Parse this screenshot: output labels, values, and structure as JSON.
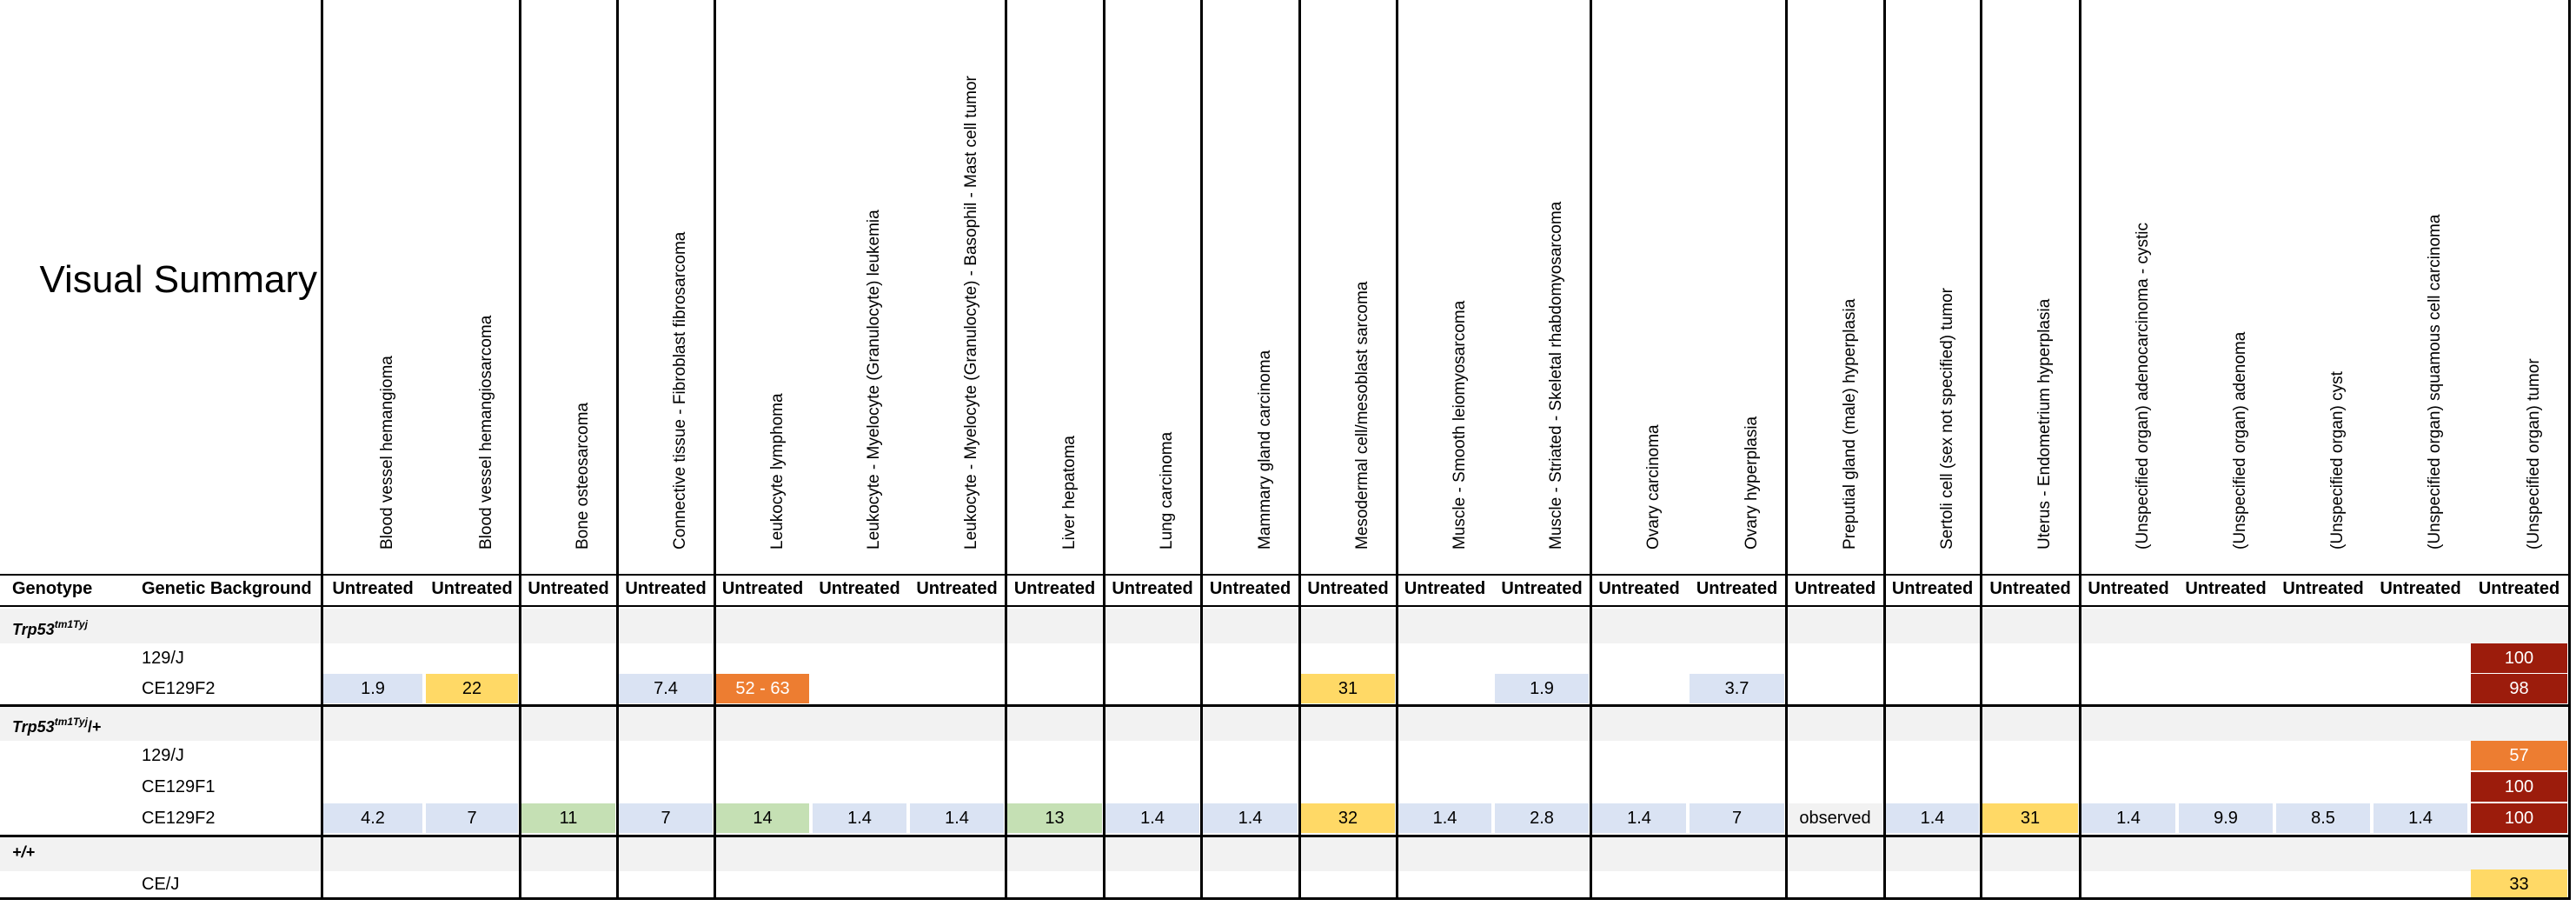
{
  "title": "Visual Summary",
  "header": {
    "genotype_label": "Genotype",
    "background_label": "Genetic Background",
    "treatment_label": "Untreated"
  },
  "columns": [
    "Blood vessel hemangioma",
    "Blood vessel hemangiosarcoma",
    "Bone osteosarcoma",
    "Connective tissue - Fibroblast fibrosarcoma",
    "Leukocyte lymphoma",
    "Leukocyte - Myelocyte (Granulocyte) leukemia",
    "Leukocyte - Myelocyte (Granulocyte) - Basophil - Mast cell tumor",
    "Liver hepatoma",
    "Lung carcinoma",
    "Mammary gland carcinoma",
    "Mesodermal cell/mesoblast sarcoma",
    "Muscle - Smooth leiomyosarcoma",
    "Muscle - Striated - Skeletal rhabdomyosarcoma",
    "Ovary carcinoma",
    "Ovary hyperplasia",
    "Preputial gland (male) hyperplasia",
    "Sertoli cell (sex not specified) tumor",
    "Uterus - Endometrium hyperplasia",
    "(Unspecified organ) adenocarcinoma - cystic",
    "(Unspecified organ) adenoma",
    "(Unspecified organ) cyst",
    "(Unspecified organ) squamous cell carcinoma",
    "(Unspecified organ) tumor"
  ],
  "colors": {
    "very_low": "#dae3f3",
    "low": "#c5e0b4",
    "mid": "#ffd966",
    "high": "#ed7d31",
    "very_high": "#9c1c0c",
    "neutral": "#f2f2f2",
    "group_band": "#f2f2f2"
  },
  "groups": [
    {
      "genotype": "Trp53",
      "allele": "tm1Tyj",
      "suffix": "",
      "rows": [
        {
          "background": "129/J",
          "cells": [
            {
              "col": 22,
              "value": "100",
              "level": "very_high"
            }
          ]
        },
        {
          "background": "CE129F2",
          "cells": [
            {
              "col": 0,
              "value": "1.9",
              "level": "very_low"
            },
            {
              "col": 1,
              "value": "22",
              "level": "mid"
            },
            {
              "col": 3,
              "value": "7.4",
              "level": "very_low"
            },
            {
              "col": 4,
              "value": "52 - 63",
              "level": "high"
            },
            {
              "col": 10,
              "value": "31",
              "level": "mid"
            },
            {
              "col": 12,
              "value": "1.9",
              "level": "very_low"
            },
            {
              "col": 14,
              "value": "3.7",
              "level": "very_low"
            },
            {
              "col": 22,
              "value": "98",
              "level": "very_high"
            }
          ]
        }
      ]
    },
    {
      "genotype": "Trp53",
      "allele": "tm1Tyj",
      "suffix": "/+",
      "rows": [
        {
          "background": "129/J",
          "cells": [
            {
              "col": 22,
              "value": "57",
              "level": "high"
            }
          ]
        },
        {
          "background": "CE129F1",
          "cells": [
            {
              "col": 22,
              "value": "100",
              "level": "very_high"
            }
          ]
        },
        {
          "background": "CE129F2",
          "cells": [
            {
              "col": 0,
              "value": "4.2",
              "level": "very_low"
            },
            {
              "col": 1,
              "value": "7",
              "level": "very_low"
            },
            {
              "col": 2,
              "value": "11",
              "level": "low"
            },
            {
              "col": 3,
              "value": "7",
              "level": "very_low"
            },
            {
              "col": 4,
              "value": "14",
              "level": "low"
            },
            {
              "col": 5,
              "value": "1.4",
              "level": "very_low"
            },
            {
              "col": 6,
              "value": "1.4",
              "level": "very_low"
            },
            {
              "col": 7,
              "value": "13",
              "level": "low"
            },
            {
              "col": 8,
              "value": "1.4",
              "level": "very_low"
            },
            {
              "col": 9,
              "value": "1.4",
              "level": "very_low"
            },
            {
              "col": 10,
              "value": "32",
              "level": "mid"
            },
            {
              "col": 11,
              "value": "1.4",
              "level": "very_low"
            },
            {
              "col": 12,
              "value": "2.8",
              "level": "very_low"
            },
            {
              "col": 13,
              "value": "1.4",
              "level": "very_low"
            },
            {
              "col": 14,
              "value": "7",
              "level": "very_low"
            },
            {
              "col": 15,
              "value": "observed",
              "level": "neutral"
            },
            {
              "col": 16,
              "value": "1.4",
              "level": "very_low"
            },
            {
              "col": 17,
              "value": "31",
              "level": "mid"
            },
            {
              "col": 18,
              "value": "1.4",
              "level": "very_low"
            },
            {
              "col": 19,
              "value": "9.9",
              "level": "very_low"
            },
            {
              "col": 20,
              "value": "8.5",
              "level": "very_low"
            },
            {
              "col": 21,
              "value": "1.4",
              "level": "very_low"
            },
            {
              "col": 22,
              "value": "100",
              "level": "very_high"
            }
          ]
        }
      ]
    },
    {
      "genotype": "+/+",
      "allele": "",
      "suffix": "",
      "rows": [
        {
          "background": "CE/J",
          "cells": [
            {
              "col": 22,
              "value": "33",
              "level": "mid"
            }
          ]
        }
      ]
    }
  ]
}
